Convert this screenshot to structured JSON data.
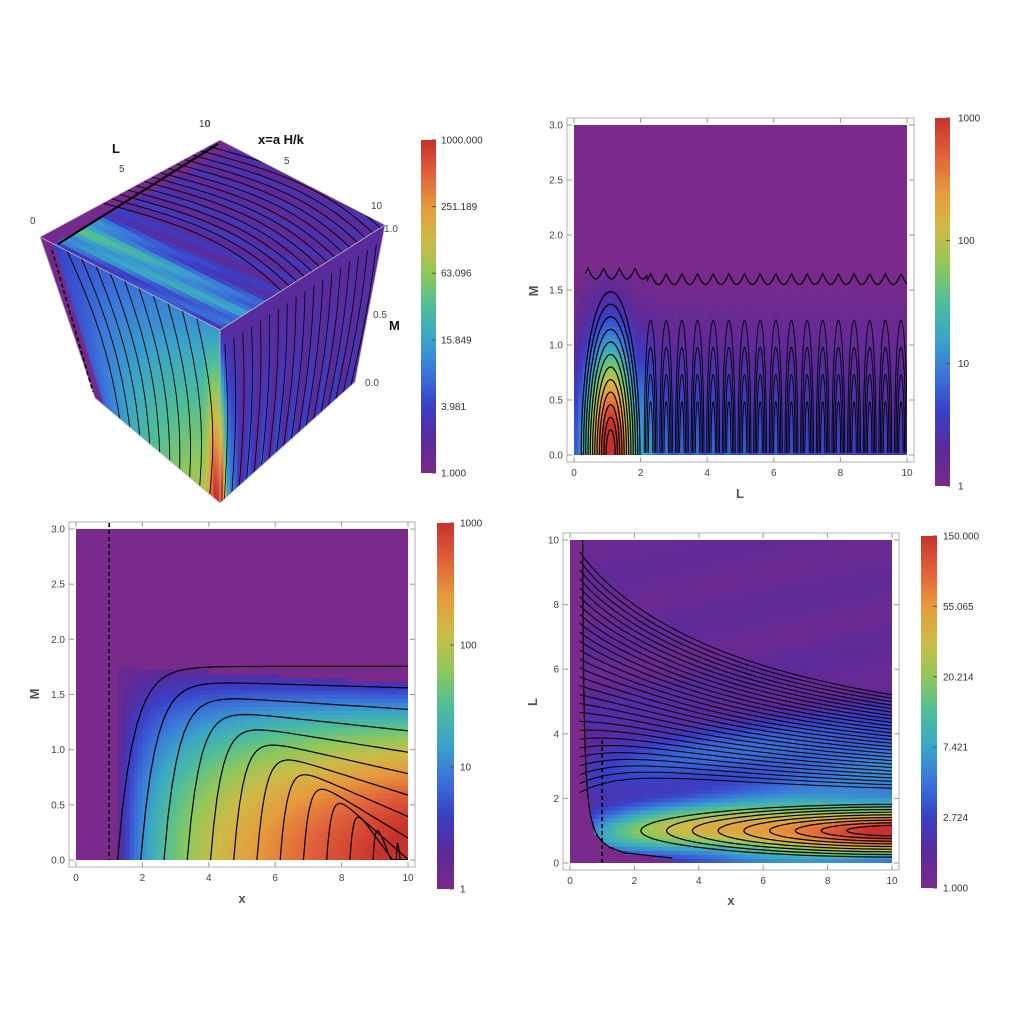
{
  "colorbar_palette": [
    "#7a2a8a",
    "#5a2a9a",
    "#3a3fc6",
    "#3b73d9",
    "#3aa5c8",
    "#4fbe98",
    "#8fc85a",
    "#cdbb48",
    "#e69a3c",
    "#e0603a",
    "#c8322e"
  ],
  "chart_data": [
    {
      "type": "heatmap",
      "subtype": "3d-box-contour",
      "axis_labels": {
        "L": "L",
        "x": "x=a H/k",
        "M": "M"
      },
      "L_ticks": [
        "0",
        "5",
        "10"
      ],
      "x_ticks": [
        "0",
        "5",
        "10"
      ],
      "M_ticks": [
        "0.0",
        "0.5",
        "1.0"
      ],
      "L_range": [
        0,
        10
      ],
      "x_range": [
        0,
        10
      ],
      "M_range": [
        0,
        1
      ],
      "colorbar": {
        "scale": "log",
        "range": [
          1,
          1000
        ],
        "ticks": [
          "1000.000",
          "251.189",
          "63.096",
          "15.849",
          "3.981",
          "1.000"
        ]
      }
    },
    {
      "type": "heatmap",
      "subtype": "contour",
      "xlabel": "L",
      "ylabel": "M",
      "xlim": [
        0,
        10
      ],
      "ylim": [
        0,
        3
      ],
      "xticks": [
        "0",
        "2",
        "4",
        "6",
        "8",
        "10"
      ],
      "yticks": [
        "0.0",
        "0.5",
        "1.0",
        "1.5",
        "2.0",
        "2.5",
        "3.0"
      ],
      "colorbar": {
        "scale": "log",
        "range": [
          1,
          1000
        ],
        "ticks": [
          "1000",
          "100",
          "10",
          "1"
        ]
      },
      "features": {
        "boundary_M": 1.65,
        "lobe_period_L": 0.47,
        "peak_L": 1.1,
        "peak_M": 0.1
      }
    },
    {
      "type": "heatmap",
      "subtype": "contour",
      "xlabel": "x",
      "ylabel": "M",
      "xlim": [
        0,
        10
      ],
      "ylim": [
        0,
        3
      ],
      "xticks": [
        "0",
        "2",
        "4",
        "6",
        "8",
        "10"
      ],
      "yticks": [
        "0.0",
        "0.5",
        "1.0",
        "1.5",
        "2.0",
        "2.5",
        "3.0"
      ],
      "colorbar": {
        "scale": "log",
        "range": [
          1,
          1000
        ],
        "ticks": [
          "1000",
          "100",
          "10",
          "1"
        ]
      },
      "dashed_line_x": 1,
      "features": {
        "boundary_M_left": 1.75,
        "boundary_M_right": 1.6,
        "onset_x": 1.2
      }
    },
    {
      "type": "heatmap",
      "subtype": "contour",
      "xlabel": "x",
      "ylabel": "L",
      "xlim": [
        0,
        10
      ],
      "ylim": [
        0,
        10
      ],
      "xticks": [
        "0",
        "2",
        "4",
        "6",
        "8",
        "10"
      ],
      "yticks": [
        "0",
        "2",
        "4",
        "6",
        "8",
        "10"
      ],
      "colorbar": {
        "scale": "log",
        "range": [
          1,
          150
        ],
        "ticks": [
          "150.000",
          "55.065",
          "20.214",
          "7.421",
          "2.724",
          "1.000"
        ]
      },
      "dashed_line_x": 1,
      "features": {
        "ridge_L": 1.0,
        "peak_x": 9
      }
    }
  ]
}
